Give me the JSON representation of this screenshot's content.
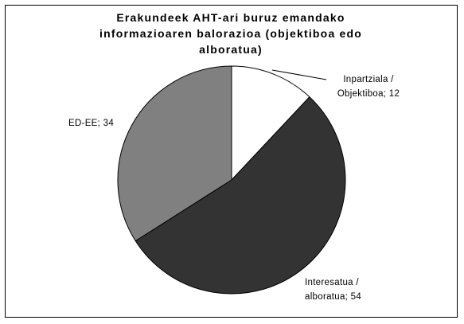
{
  "chart_data": {
    "type": "pie",
    "title": "Erakundeek AHT-ari buruz emandako informazioaren balorazioa (objektiboa edo alboratua)",
    "values": [
      12,
      54,
      34
    ],
    "value_labels": [
      "Inpartziala / Objektiboa; 12",
      "Interesatua / alboratua; 54",
      "ED-EE; 34"
    ],
    "colors": [
      "#ffffff",
      "#333333",
      "#808080"
    ]
  }
}
